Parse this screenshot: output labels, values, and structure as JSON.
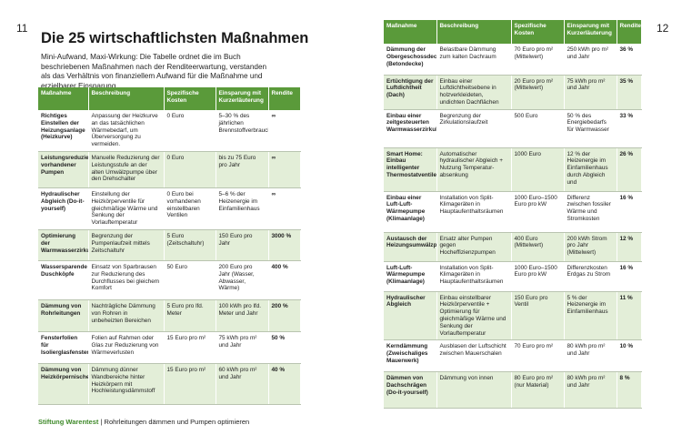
{
  "header": {
    "page_left": "11",
    "page_right": "12",
    "title": "Die 25 wirtschaftlichsten Maßnahmen",
    "intro": "Mini-Aufwand, Maxi-Wirkung: Die Tabelle ordnet die im Buch beschriebenen Maßnahmen nach der Renditeerwartung, verstanden als das Verhältnis von finanziellem Aufwand für die Maßnahme und erzielbarer Einsparung."
  },
  "tables": {
    "left": {
      "columns": [
        "Maßnahme",
        "Beschreibung",
        "Spezifische Kosten",
        "Einsparung mit Kurzerläuterung",
        "Rendite"
      ],
      "rows": [
        [
          "Richtiges Einstellen der Heizungsanlage (Heizkurve)",
          "Anpassung der Heizkurve an das tatsächlichen Wärmebedarf, um Überversorgung zu vermeiden.",
          "0 Euro",
          "5–30 % des jährlichen Brennstoffverbrauchs",
          "∞"
        ],
        [
          "Leistungsreduzierung vorhandener Pumpen",
          "Manuelle Reduzierung der Leistungsstufe an der alten Umwälzpumpe über den Drehschalter",
          "0 Euro",
          "bis zu 75 Euro pro Jahr",
          "∞"
        ],
        [
          "Hydraulischer Abgleich (Do-it-yourself)",
          "Einstellung der Heizkörperventile für gleichmäßige Wärme und Senkung der Vorlauftemperatur",
          "0 Euro bei vorhandenen einstellbaren Ventilen",
          "5–6 % der Heizenergie im Einfamilienhaus",
          "∞"
        ],
        [
          "Optimierung der Warmwasserzirkulation",
          "Begrenzung der Pumpenlaufzeit mittels Zeitschaltuhr",
          "5 Euro (Zeitschaltuhr)",
          "150 Euro pro Jahr",
          "3000 %"
        ],
        [
          "Wassersparende Duschköpfe",
          "Einsatz von Sparbrausen zur Reduzierung des Durchflusses bei gleichem Komfort",
          "50 Euro",
          "200 Euro pro Jahr (Wasser, Abwasser, Wärme)",
          "400 %"
        ],
        [
          "Dämmung von Rohrleitungen",
          "Nachträgliche Dämmung von Rohren in unbeheizten Bereichen",
          "5 Euro pro lfd. Meter",
          "100 kWh pro lfd. Meter und Jahr",
          "200 %"
        ],
        [
          "Fensterfolien für Isolierglasfenster",
          "Folien auf Rahmen oder Glas zur Reduzierung von Wärmeverlusten",
          "15 Euro pro m²",
          "75 kWh pro m² und Jahr",
          "50 %"
        ],
        [
          "Dämmung von Heizkörpernischen",
          "Dämmung dünner Wandbereiche hinter Heizkörpern mit Hochleistungsdämmstoff",
          "15 Euro pro m²",
          "60 kWh pro m² und Jahr",
          "40 %"
        ]
      ]
    },
    "right": {
      "columns": [
        "Maßnahme",
        "Beschreibung",
        "Spezifische Kosten",
        "Einsparung mit Kurzerläuterung",
        "Rendite"
      ],
      "rows": [
        [
          "Dämmung der Obergeschossdecke (Betondecke)",
          "Belastbare Dämmung zum kalten Dachraum",
          "70 Euro pro m² (Mittelwert)",
          "250 kWh pro m² und Jahr",
          "36 %"
        ],
        [
          "Ertüchtigung der Luftdichtheit (Dach)",
          "Einbau einer Luftdichtheitsebene in holzverkleideten, undichten Dachflächen",
          "20 Euro pro m² (Mittelwert)",
          "75 kWh pro m² und Jahr",
          "35 %"
        ],
        [
          "Einbau einer zeitgesteuerten Warmwasserzirkulationspumpe",
          "Begrenzung der Zirkulationslaufzeit",
          "500 Euro",
          "50 % des Energiebedarfs für Warmwasser",
          "33 %"
        ],
        [
          "Smart Home: Einbau intelligenter Thermostatventile",
          "Automatischer hydraulischer Abgleich + Nutzung Temperatur-absenkung",
          "1000 Euro",
          "12 % der Heizenergie im Einfamilienhaus durch Abgleich und",
          "26 %"
        ],
        [
          "Einbau einer Luft-Luft-Wärmepumpe (Klimaanlage)",
          "Installation von Split-Klimageräten in Hauptaufenthaltsräumen",
          "1000 Euro–1500 Euro pro kW",
          "Differenz zwischen fossiler Wärme und Stromkosten",
          "16 %"
        ],
        [
          "Austausch der Heizungsumwälzpumpe",
          "Ersatz alter Pumpen gegen Hocheffizienzpumpen",
          "400 Euro (Mittelwert)",
          "200 kWh Strom pro Jahr (Mittelwert)",
          "12 %"
        ],
        [
          "Luft-Luft-Wärmepumpe (Klimaanlage)",
          "Installation von Split-Klimageräten in Hauptaufenthaltsräumen",
          "1000 Euro–1500 Euro pro kW",
          "Differenzkosten Erdgas zu Strom",
          "16 %"
        ],
        [
          "Hydraulischer Abgleich",
          "Einbau einstellbarer Heizkörperventile + Optimierung für gleichmäßige Wärme und Senkung der Vorlauftemperatur",
          "150 Euro pro Ventil",
          "5 % der Heizenergie im Einfamilienhaus",
          "11 %"
        ],
        [
          "Kerndämmung (Zweischaliges Mauerwerk)",
          "Ausblasen der Luftschicht zwischen Mauerschalen",
          "70 Euro pro m²",
          "80 kWh pro m² und Jahr",
          "10 %"
        ],
        [
          "Dämmen von Dachschrägen (Do-it-yourself)",
          "Dämmung von innen",
          "80 Euro pro m² (nur Material)",
          "80 kWh pro m² und Jahr",
          "8 %"
        ]
      ]
    }
  },
  "footer": {
    "brand": "Stiftung Warentest",
    "separator": "|",
    "text": "Rohrleitungen dämmen und Pumpen optimieren"
  }
}
